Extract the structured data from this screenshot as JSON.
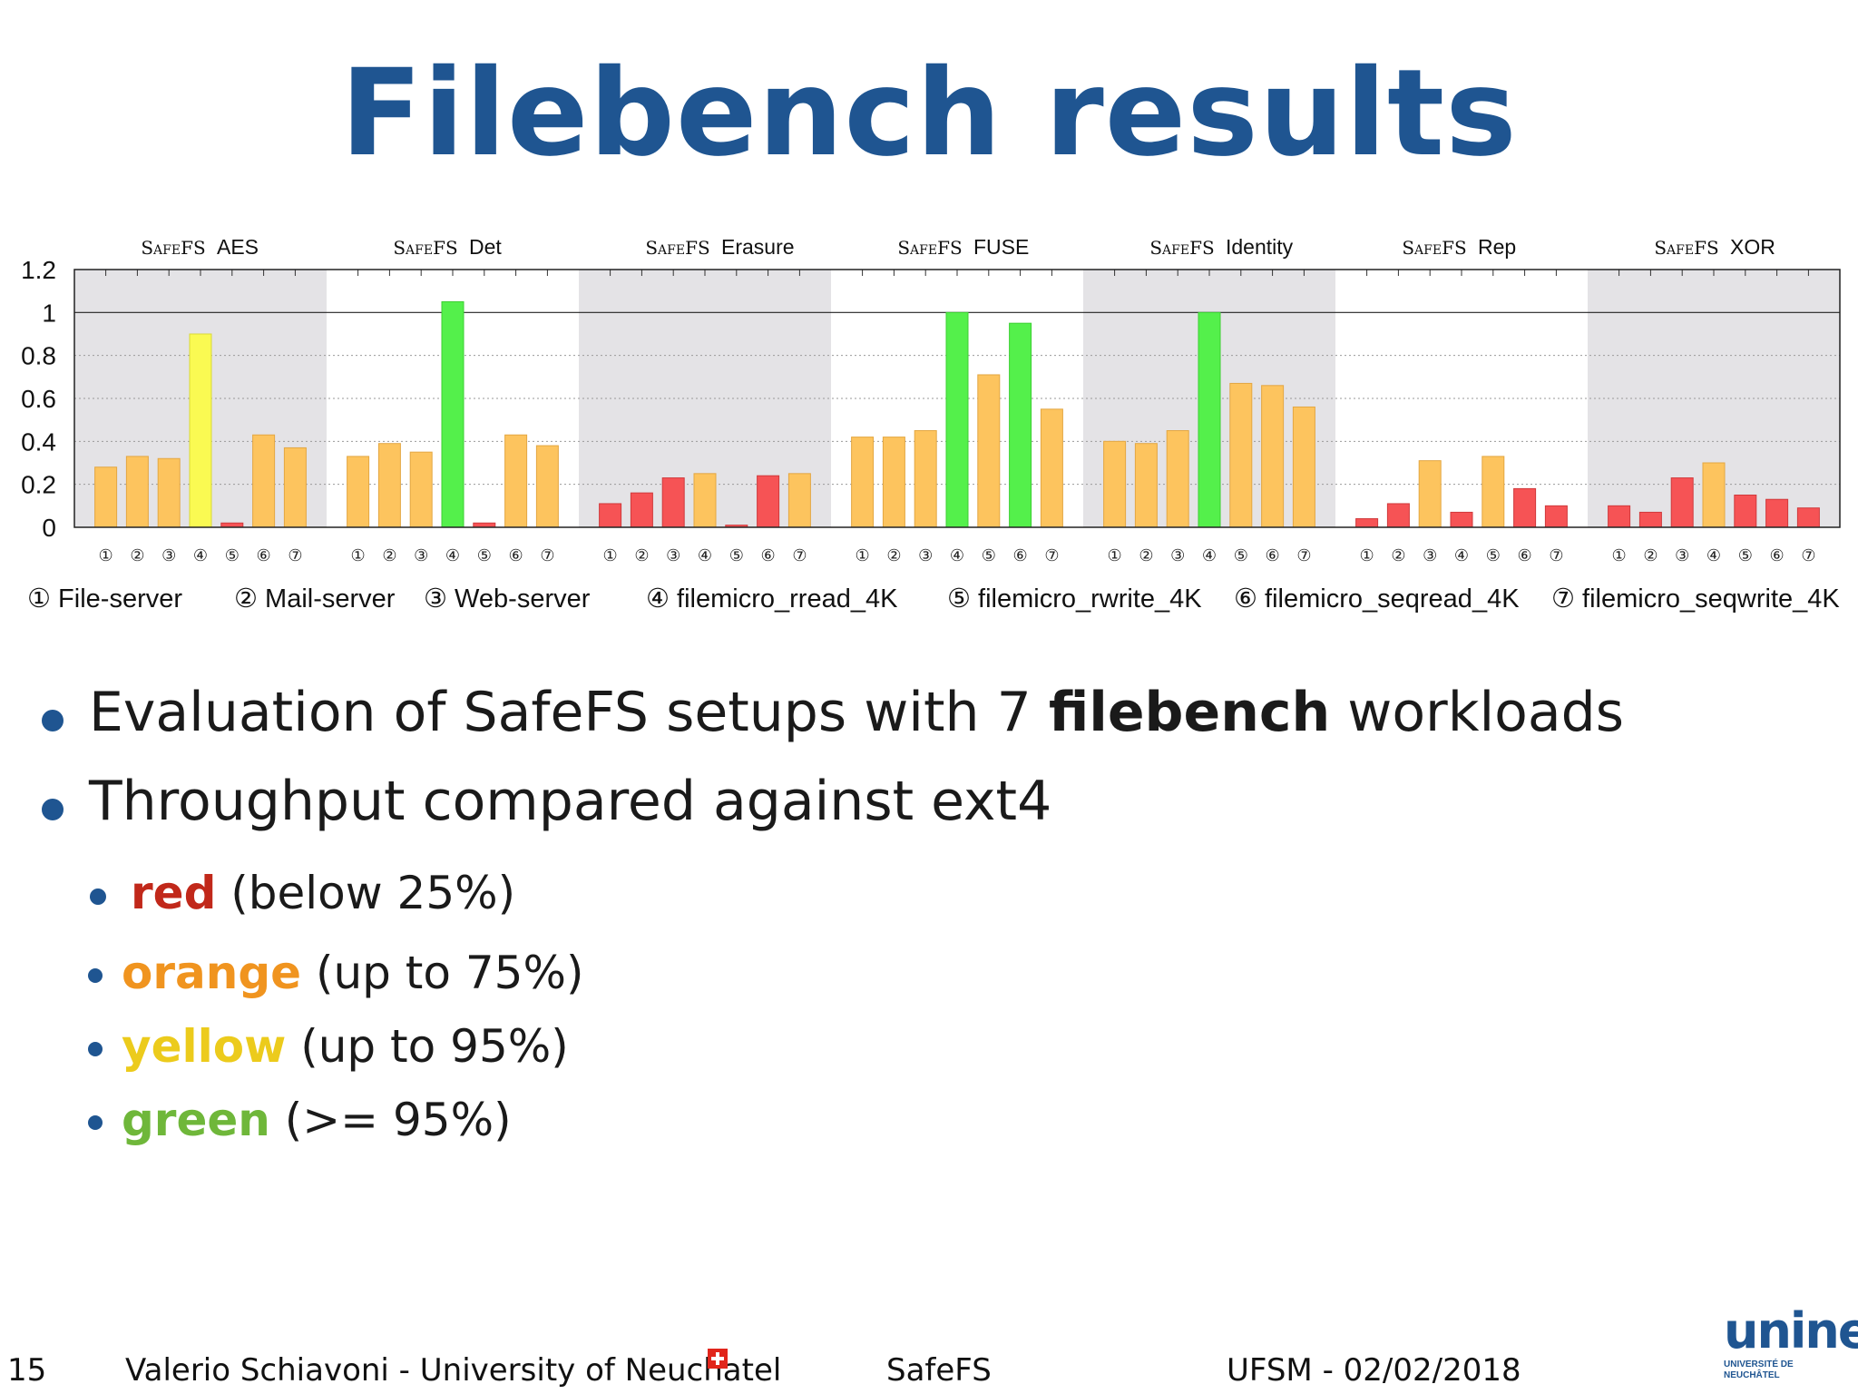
{
  "slide": {
    "title": "Filebench results"
  },
  "chart_data": {
    "type": "bar",
    "ylim": [
      0,
      1.2
    ],
    "yticks": [
      "0",
      "0.2",
      "0.4",
      "0.6",
      "0.8",
      "1",
      "1.2"
    ],
    "reference_line": 1,
    "series_prefix": "SafeFS",
    "categories": [
      "①",
      "②",
      "③",
      "④",
      "⑤",
      "⑥",
      "⑦"
    ],
    "groups": [
      {
        "name": "AES",
        "values": [
          0.28,
          0.33,
          0.32,
          0.9,
          0.02,
          0.43,
          0.37
        ]
      },
      {
        "name": "Det",
        "values": [
          0.33,
          0.39,
          0.35,
          1.05,
          0.02,
          0.43,
          0.38
        ]
      },
      {
        "name": "Erasure",
        "values": [
          0.11,
          0.16,
          0.23,
          0.25,
          0.01,
          0.24,
          0.25
        ]
      },
      {
        "name": "FUSE",
        "values": [
          0.42,
          0.42,
          0.45,
          1.0,
          0.71,
          0.95,
          0.55
        ]
      },
      {
        "name": "Identity",
        "values": [
          0.4,
          0.39,
          0.45,
          1.0,
          0.67,
          0.66,
          0.56
        ]
      },
      {
        "name": "Rep",
        "values": [
          0.04,
          0.11,
          0.31,
          0.07,
          0.33,
          0.18,
          0.1
        ]
      },
      {
        "name": "XOR",
        "values": [
          0.1,
          0.07,
          0.23,
          0.3,
          0.15,
          0.13,
          0.09
        ]
      }
    ],
    "color_thresholds": {
      "red": 0.25,
      "orange": 0.75,
      "yellow": 0.95
    },
    "colors": {
      "red": "#f65355",
      "orange": "#fdc45e",
      "yellow": "#fafa52",
      "green": "#54f04b",
      "band": "#e4e3e6"
    },
    "legend": [
      "① File-server",
      "② Mail-server",
      "③ Web-server",
      "④ filemicro_rread_4K",
      "⑤ filemicro_rwrite_4K",
      "⑥ filemicro_seqread_4K",
      "⑦ filemicro_seqwrite_4K"
    ]
  },
  "bullets": {
    "b1": {
      "pre": "Evaluation of SafeFS setups with 7 ",
      "bold": "filebench",
      "post": " workloads"
    },
    "b2": {
      "text": "Throughput compared against ext4"
    },
    "sub": [
      {
        "word": "red",
        "rest": " (below 25%)",
        "color": "#c1281a"
      },
      {
        "word": "orange",
        "rest": " (up to 75%)",
        "color": "#f0941f"
      },
      {
        "word": "yellow",
        "rest": " (up to 95%)",
        "color": "#eccb1c"
      },
      {
        "word": "green",
        "rest": " (>= 95%)",
        "color": "#6fb73a"
      }
    ]
  },
  "footer": {
    "page": "15",
    "author": "Valerio Schiavoni  - University of Neuchatel",
    "center": "SafeFS",
    "right": "UFSM - 02/02/2018",
    "logo_text": "unine",
    "logo_sub1": "UNIVERSITÉ DE",
    "logo_sub2": "NEUCHÂTEL"
  }
}
